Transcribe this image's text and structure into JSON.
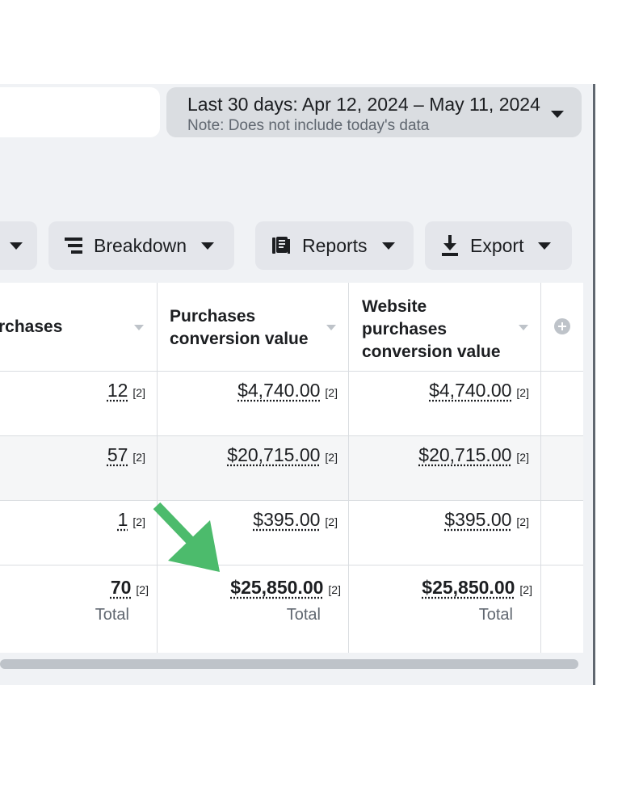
{
  "date_range": {
    "label": "Last 30 days: Apr 12, 2024 – May 11, 2024",
    "note": "Note: Does not include today's data"
  },
  "toolbar": {
    "breakdown_label": "Breakdown",
    "reports_label": "Reports",
    "export_label": "Export"
  },
  "columns": {
    "purchases": "rchases",
    "purchases_value_line1": "Purchases",
    "purchases_value_line2": "conversion value",
    "website_line1": "Website",
    "website_line2": "purchases",
    "website_line3": "conversion value"
  },
  "rows": [
    {
      "purchases": "12",
      "purchases_value": "$4,740.00",
      "website_value": "$4,740.00"
    },
    {
      "purchases": "57",
      "purchases_value": "$20,715.00",
      "website_value": "$20,715.00"
    },
    {
      "purchases": "1",
      "purchases_value": "$395.00",
      "website_value": "$395.00"
    }
  ],
  "totals": {
    "purchases": "70",
    "purchases_value": "$25,850.00",
    "website_value": "$25,850.00",
    "label": "Total"
  },
  "reference_marker": "[2]",
  "colors": {
    "panel_bg": "#f0f2f5",
    "button_bg": "#e4e6eb",
    "date_bg": "#dadde1",
    "arrow": "#4cbb6c"
  }
}
